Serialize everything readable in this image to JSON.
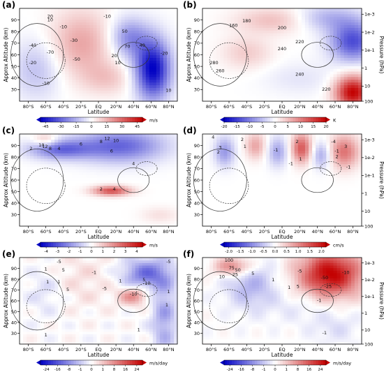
{
  "chart_data": [
    {
      "type": "heatmap",
      "panel_label": "(a)",
      "xlabel": "Latitude",
      "ylabel_left": "Approx Altitude (km)",
      "ylabel_right": "",
      "x_ticks": [
        "80°S",
        "60°S",
        "40°S",
        "20°S",
        "EQ",
        "20°N",
        "40°N",
        "60°N",
        "80°N"
      ],
      "y_ticks": [
        "90",
        "80",
        "70",
        "60",
        "50",
        "40",
        "30"
      ],
      "right_ticks": [],
      "colorbar": {
        "ticks": [
          "-45",
          "-30",
          "-15",
          "0",
          "15",
          "30",
          "45"
        ],
        "unit": "m/s",
        "range": [
          -50,
          50
        ]
      },
      "contour_labels": [
        {
          "x": -55,
          "y": 92,
          "text": "20"
        },
        {
          "x": -55,
          "y": 89,
          "text": "10"
        },
        {
          "x": -40,
          "y": 83,
          "text": "-10"
        },
        {
          "x": -75,
          "y": 67,
          "text": "-40"
        },
        {
          "x": -55,
          "y": 61,
          "text": "-70"
        },
        {
          "x": -28,
          "y": 71,
          "text": "-30"
        },
        {
          "x": -25,
          "y": 55,
          "text": "-50"
        },
        {
          "x": -75,
          "y": 52,
          "text": "-20"
        },
        {
          "x": -60,
          "y": 34,
          "text": "-10"
        },
        {
          "x": 18,
          "y": 58,
          "text": "20"
        },
        {
          "x": 30,
          "y": 79,
          "text": "50"
        },
        {
          "x": 33,
          "y": 66,
          "text": "70"
        },
        {
          "x": 50,
          "y": 67,
          "text": "40"
        },
        {
          "x": 22,
          "y": 52,
          "text": "10"
        },
        {
          "x": 10,
          "y": 92,
          "text": "-10"
        },
        {
          "x": 75,
          "y": 60,
          "text": "-20"
        },
        {
          "x": 80,
          "y": 28,
          "text": "10"
        }
      ]
    },
    {
      "type": "heatmap",
      "panel_label": "(b)",
      "xlabel": "Latitude",
      "ylabel_left": "Approx Altitude (km)",
      "ylabel_right": "Pressure (hPa)",
      "x_ticks": [
        "80°S",
        "60°S",
        "40°S",
        "20°S",
        "EQ",
        "20°N",
        "40°N",
        "60°N",
        "80°N"
      ],
      "y_ticks": [
        "90",
        "80",
        "70",
        "60",
        "50",
        "40",
        "30"
      ],
      "right_ticks": [
        "1e-3",
        "1e-2",
        "1e-1",
        "1",
        "10",
        "100"
      ],
      "colorbar": {
        "ticks": [
          "-20",
          "-15",
          "-10",
          "-5",
          "0",
          "5",
          "10",
          "15",
          "20"
        ],
        "unit": "K",
        "range": [
          -20,
          20
        ]
      },
      "contour_labels": [
        {
          "x": -55,
          "y": 84,
          "text": "160"
        },
        {
          "x": -40,
          "y": 88,
          "text": "180"
        },
        {
          "x": 0,
          "y": 82,
          "text": "200"
        },
        {
          "x": 20,
          "y": 70,
          "text": "220"
        },
        {
          "x": 0,
          "y": 64,
          "text": "240"
        },
        {
          "x": -77,
          "y": 52,
          "text": "280"
        },
        {
          "x": -70,
          "y": 45,
          "text": "260"
        },
        {
          "x": 20,
          "y": 42,
          "text": "240"
        },
        {
          "x": 50,
          "y": 29,
          "text": "220"
        }
      ]
    },
    {
      "type": "heatmap",
      "panel_label": "(c)",
      "xlabel": "Latitude",
      "ylabel_left": "Approx Altitude (km)",
      "ylabel_right": "",
      "x_ticks": [
        "80°S",
        "60°S",
        "40°S",
        "20°S",
        "EQ",
        "20°N",
        "40°N",
        "60°N",
        "80°N"
      ],
      "y_ticks": [
        "90",
        "80",
        "70",
        "60",
        "50",
        "40",
        "30"
      ],
      "right_ticks": [],
      "colorbar": {
        "ticks": [
          "-4",
          "-3",
          "-2",
          "-1",
          "0",
          "1",
          "2",
          "3",
          "4"
        ],
        "unit": "m/s",
        "range": [
          -4.5,
          4.5
        ]
      },
      "contour_labels": [
        {
          "x": -77,
          "y": 86,
          "text": "2"
        },
        {
          "x": -65,
          "y": 89,
          "text": "10"
        },
        {
          "x": -61,
          "y": 88,
          "text": "12"
        },
        {
          "x": -55,
          "y": 86,
          "text": "8"
        },
        {
          "x": -45,
          "y": 86,
          "text": "4"
        },
        {
          "x": -20,
          "y": 90,
          "text": "6"
        },
        {
          "x": 3,
          "y": 92,
          "text": "8"
        },
        {
          "x": 10,
          "y": 95,
          "text": "12"
        },
        {
          "x": 20,
          "y": 93,
          "text": "10"
        },
        {
          "x": 15,
          "y": 84,
          "text": "6"
        },
        {
          "x": 40,
          "y": 73,
          "text": "4"
        },
        {
          "x": 3,
          "y": 51,
          "text": "2"
        },
        {
          "x": 18,
          "y": 51,
          "text": "4"
        }
      ]
    },
    {
      "type": "heatmap",
      "panel_label": "(d)",
      "xlabel": "Latitude",
      "ylabel_left": "Approx Altitude (km)",
      "ylabel_right": "Pressure (hPa)",
      "x_ticks": [
        "80°S",
        "60°S",
        "40°S",
        "20°S",
        "EQ",
        "20°N",
        "40°N",
        "60°N",
        "80°N"
      ],
      "y_ticks": [
        "90",
        "80",
        "70",
        "60",
        "50",
        "40",
        "30"
      ],
      "right_ticks": [
        "1e-3",
        "1e-2",
        "1e-1",
        "1",
        "10",
        "100"
      ],
      "colorbar": {
        "ticks": [
          "-2.0",
          "-1.5",
          "-1.0",
          "-0.5",
          "0.0",
          "0.5",
          "1.0",
          "1.5",
          "2.0"
        ],
        "unit": "cm/s",
        "range": [
          -2.2,
          2.2
        ]
      },
      "contour_labels": [
        {
          "x": -78,
          "y": 96,
          "text": "4"
        },
        {
          "x": -70,
          "y": 87,
          "text": "3"
        },
        {
          "x": -72,
          "y": 83,
          "text": "2"
        },
        {
          "x": -45,
          "y": 94,
          "text": "2"
        },
        {
          "x": -42,
          "y": 88,
          "text": "1"
        },
        {
          "x": -7,
          "y": 85,
          "text": "-1"
        },
        {
          "x": 17,
          "y": 92,
          "text": "2"
        },
        {
          "x": 21,
          "y": 77,
          "text": "1"
        },
        {
          "x": 10,
          "y": 73,
          "text": "-1"
        },
        {
          "x": 58,
          "y": 92,
          "text": "-4"
        },
        {
          "x": 72,
          "y": 88,
          "text": "3"
        },
        {
          "x": 62,
          "y": 84,
          "text": "-1"
        },
        {
          "x": 62,
          "y": 79,
          "text": "2"
        },
        {
          "x": 75,
          "y": 70,
          "text": "-1"
        }
      ]
    },
    {
      "type": "heatmap",
      "panel_label": "(e)",
      "xlabel": "Latitude",
      "ylabel_left": "Approx Altitude (km)",
      "ylabel_right": "",
      "x_ticks": [
        "80°S",
        "60°S",
        "40°S",
        "20°S",
        "EQ",
        "20°N",
        "40°N",
        "60°N",
        "80°N"
      ],
      "y_ticks": [
        "90",
        "80",
        "70",
        "60",
        "50",
        "40",
        "30"
      ],
      "right_ticks": [],
      "colorbar": {
        "ticks": [
          "-24",
          "-16",
          "-8",
          "-1",
          "0",
          "1",
          "8",
          "16",
          "24"
        ],
        "unit": "m/s/day",
        "range": [
          -28,
          28
        ]
      },
      "contour_labels": [
        {
          "x": -45,
          "y": 95,
          "text": "-5"
        },
        {
          "x": -60,
          "y": 88,
          "text": "1"
        },
        {
          "x": -40,
          "y": 87,
          "text": "5"
        },
        {
          "x": -58,
          "y": 76,
          "text": "1"
        },
        {
          "x": -45,
          "y": 76,
          "text": "1"
        },
        {
          "x": -35,
          "y": 69,
          "text": "5"
        },
        {
          "x": -5,
          "y": 85,
          "text": "-1"
        },
        {
          "x": 7,
          "y": 70,
          "text": "-5"
        },
        {
          "x": 25,
          "y": 77,
          "text": "1"
        },
        {
          "x": 55,
          "y": 75,
          "text": "-10"
        },
        {
          "x": 40,
          "y": 65,
          "text": "-10"
        },
        {
          "x": 52,
          "y": 78,
          "text": "5"
        },
        {
          "x": 80,
          "y": 95,
          "text": "-5"
        },
        {
          "x": 80,
          "y": 67,
          "text": "1"
        },
        {
          "x": 78,
          "y": 55,
          "text": "1"
        },
        {
          "x": -60,
          "y": 27,
          "text": "1"
        },
        {
          "x": 46,
          "y": 32,
          "text": "1"
        }
      ]
    },
    {
      "type": "heatmap",
      "panel_label": "(f)",
      "xlabel": "Latitude",
      "ylabel_left": "Approx Altitude (km)",
      "ylabel_right": "Pressure (hPa)",
      "x_ticks": [
        "80°S",
        "60°S",
        "40°S",
        "20°S",
        "EQ",
        "20°N",
        "40°N",
        "60°N",
        "80°N"
      ],
      "y_ticks": [
        "90",
        "80",
        "70",
        "60",
        "50",
        "40",
        "30"
      ],
      "right_ticks": [
        "1e-3",
        "1e-2",
        "1e-1",
        "1",
        "10",
        "100"
      ],
      "colorbar": {
        "ticks": [
          "-24",
          "-16",
          "-8",
          "-1",
          "0",
          "1",
          "8",
          "16",
          "24"
        ],
        "unit": "m/s/day",
        "range": [
          -28,
          28
        ]
      },
      "contour_labels": [
        {
          "x": -60,
          "y": 96,
          "text": "100"
        },
        {
          "x": -57,
          "y": 89,
          "text": "75"
        },
        {
          "x": -50,
          "y": 87,
          "text": "50"
        },
        {
          "x": -53,
          "y": 83,
          "text": "25"
        },
        {
          "x": -68,
          "y": 81,
          "text": "10"
        },
        {
          "x": -33,
          "y": 84,
          "text": "5"
        },
        {
          "x": -10,
          "y": 78,
          "text": "1"
        },
        {
          "x": 8,
          "y": 71,
          "text": "1"
        },
        {
          "x": 18,
          "y": 72,
          "text": "5"
        },
        {
          "x": 20,
          "y": 86,
          "text": "-5"
        },
        {
          "x": 48,
          "y": 80,
          "text": "-50"
        },
        {
          "x": 72,
          "y": 85,
          "text": "-10"
        },
        {
          "x": 52,
          "y": 72,
          "text": "-25"
        },
        {
          "x": 42,
          "y": 59,
          "text": "-1"
        },
        {
          "x": 48,
          "y": 29,
          "text": "-1"
        }
      ]
    }
  ]
}
